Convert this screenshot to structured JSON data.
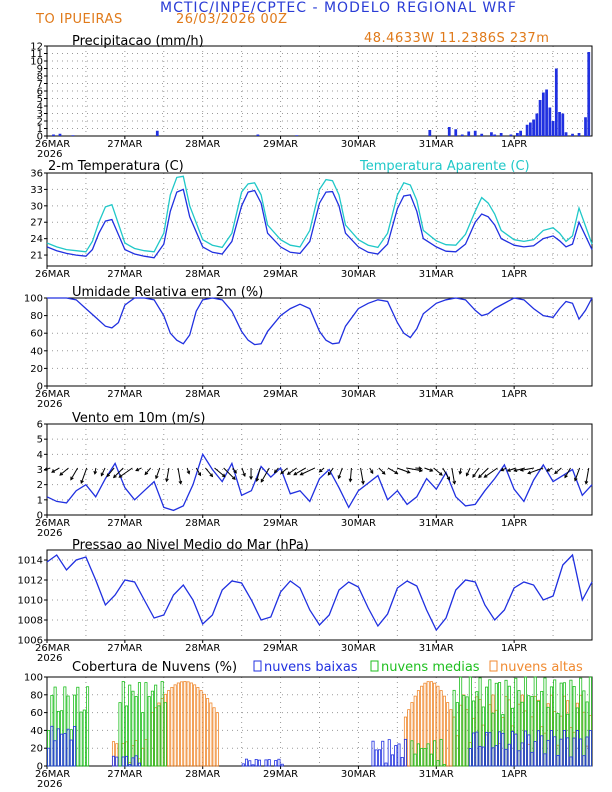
{
  "header": {
    "title": "MCTIC/INPE/CPTEC - MODELO REGIONAL WRF",
    "location": "TO IPUEIRAS",
    "run": "26/03/2026 00Z",
    "coords": "48.4633W 11.2386S 237m"
  },
  "colors": {
    "blue": "#2030e0",
    "cyan": "#20c8c8",
    "green": "#1fbf1f",
    "orange": "#f08a30",
    "title_blue": "#2a3cd6",
    "title_orange": "#e07a1a"
  },
  "chart_data": [
    {
      "type": "bar",
      "title": "Precipitacao (mm/h)",
      "ylim": [
        0,
        12
      ],
      "yticks": [
        "0",
        "1",
        "2",
        "3",
        "4",
        "5",
        "6",
        "7",
        "8",
        "9",
        "10",
        "11",
        "12"
      ],
      "xlabels": [
        "26MAR",
        "27MAR",
        "28MAR",
        "29MAR",
        "30MAR",
        "31MAR",
        "1APR"
      ],
      "year_label": "2026",
      "hours": 168,
      "bars": [
        [
          2,
          0.2
        ],
        [
          4,
          0.3
        ],
        [
          8,
          0.1
        ],
        [
          34,
          0.7
        ],
        [
          65,
          0.2
        ],
        [
          77,
          0.1
        ],
        [
          118,
          0.8
        ],
        [
          124,
          1.2
        ],
        [
          126,
          0.9
        ],
        [
          128,
          0.2
        ],
        [
          130,
          0.6
        ],
        [
          132,
          0.7
        ],
        [
          134,
          0.3
        ],
        [
          137,
          0.5
        ],
        [
          138,
          0.2
        ],
        [
          140,
          0.4
        ],
        [
          143,
          0.2
        ],
        [
          145,
          0.4
        ],
        [
          146,
          0.7
        ],
        [
          148,
          1.5
        ],
        [
          149,
          1.8
        ],
        [
          150,
          2.2
        ],
        [
          151,
          3.0
        ],
        [
          152,
          4.8
        ],
        [
          153,
          5.8
        ],
        [
          154,
          6.2
        ],
        [
          155,
          3.8
        ],
        [
          156,
          2.0
        ],
        [
          157,
          9.0
        ],
        [
          158,
          3.2
        ],
        [
          159,
          3.0
        ],
        [
          160,
          0.5
        ],
        [
          162,
          0.3
        ],
        [
          164,
          0.4
        ],
        [
          166,
          2.5
        ],
        [
          167,
          11.2
        ]
      ]
    },
    {
      "type": "line",
      "title": "2-m Temperatura (C)",
      "legend": "Temperatura Aparente (C)",
      "ylim": [
        19,
        36
      ],
      "yticks": [
        "21",
        "24",
        "27",
        "30",
        "33",
        "36"
      ],
      "ytick_values": [
        21,
        24,
        27,
        30,
        33,
        36
      ],
      "xlabels": [
        "26MAR",
        "27MAR",
        "28MAR",
        "29MAR",
        "30MAR",
        "31MAR",
        "1APR"
      ],
      "series": [
        {
          "name": "Temperatura 2m",
          "x": [
            0,
            3,
            6,
            9,
            12,
            14,
            16,
            18,
            20,
            24,
            27,
            30,
            33,
            36,
            38,
            40,
            42,
            44,
            48,
            51,
            54,
            57,
            60,
            62,
            64,
            66,
            68,
            72,
            75,
            78,
            81,
            84,
            86,
            88,
            90,
            92,
            96,
            99,
            102,
            105,
            108,
            110,
            112,
            114,
            116,
            120,
            123,
            126,
            129,
            132,
            134,
            136,
            138,
            140,
            144,
            147,
            150,
            153,
            156,
            158,
            160,
            162,
            164,
            168
          ],
          "y": [
            22.5,
            21.8,
            21.3,
            21.0,
            20.8,
            22.0,
            25.0,
            27.2,
            27.5,
            22.0,
            21.2,
            20.8,
            20.5,
            23.0,
            29.0,
            32.5,
            33.0,
            28.0,
            22.5,
            21.5,
            21.2,
            23.5,
            30.0,
            32.5,
            32.8,
            30.5,
            25.0,
            22.5,
            21.5,
            21.3,
            23.5,
            30.5,
            32.5,
            32.6,
            30.0,
            25.0,
            22.5,
            21.5,
            21.2,
            23.0,
            29.5,
            31.8,
            32.0,
            29.0,
            24.0,
            22.5,
            21.7,
            21.6,
            23.0,
            27.0,
            28.5,
            28.0,
            26.5,
            24.0,
            22.8,
            22.5,
            22.7,
            24.0,
            24.5,
            23.6,
            22.5,
            23.0,
            27.0,
            22.0
          ]
        },
        {
          "name": "Temperatura Aparente",
          "x": [
            0,
            3,
            6,
            9,
            12,
            14,
            16,
            18,
            20,
            24,
            27,
            30,
            33,
            36,
            38,
            40,
            42,
            44,
            48,
            51,
            54,
            57,
            60,
            62,
            64,
            66,
            68,
            72,
            75,
            78,
            81,
            84,
            86,
            88,
            90,
            92,
            96,
            99,
            102,
            105,
            108,
            110,
            112,
            114,
            116,
            120,
            123,
            126,
            129,
            132,
            134,
            136,
            138,
            140,
            144,
            147,
            150,
            153,
            156,
            158,
            160,
            162,
            164,
            168
          ],
          "y": [
            23.2,
            22.5,
            22.0,
            21.8,
            21.6,
            23.5,
            27.0,
            29.8,
            30.2,
            23.2,
            22.2,
            21.8,
            21.6,
            25.0,
            32.0,
            35.2,
            35.4,
            30.0,
            23.8,
            22.8,
            22.4,
            25.0,
            32.5,
            34.0,
            34.2,
            32.0,
            26.5,
            23.8,
            22.8,
            22.5,
            25.5,
            33.0,
            34.8,
            34.6,
            32.0,
            26.5,
            23.8,
            22.8,
            22.4,
            25.0,
            32.0,
            34.2,
            33.8,
            31.0,
            25.5,
            23.6,
            22.9,
            22.8,
            24.8,
            29.0,
            31.5,
            30.5,
            28.5,
            25.5,
            23.8,
            23.5,
            23.8,
            25.5,
            26.0,
            25.0,
            23.5,
            24.5,
            29.6,
            23.0
          ]
        }
      ]
    },
    {
      "type": "line",
      "title": "Umidade Relativa em 2m (%)",
      "ylim": [
        0,
        100
      ],
      "yticks": [
        "0",
        "20",
        "40",
        "60",
        "80",
        "100"
      ],
      "ytick_values": [
        0,
        20,
        40,
        60,
        80,
        100
      ],
      "xlabels": [
        "26MAR",
        "27MAR",
        "28MAR",
        "29MAR",
        "30MAR",
        "31MAR",
        "1APR"
      ],
      "year_label": "2026",
      "series": [
        {
          "name": "Umidade Relativa",
          "x": [
            0,
            3,
            6,
            9,
            12,
            15,
            18,
            20,
            22,
            24,
            27,
            30,
            33,
            36,
            38,
            40,
            42,
            44,
            46,
            48,
            51,
            54,
            57,
            60,
            62,
            64,
            66,
            68,
            72,
            75,
            78,
            81,
            84,
            86,
            88,
            90,
            92,
            96,
            99,
            102,
            105,
            108,
            110,
            112,
            114,
            116,
            120,
            123,
            126,
            129,
            132,
            134,
            136,
            138,
            140,
            144,
            147,
            150,
            153,
            156,
            158,
            160,
            162,
            164,
            166,
            168
          ],
          "y": [
            100,
            100,
            100,
            98,
            88,
            78,
            68,
            66,
            72,
            92,
            100,
            100,
            98,
            80,
            60,
            52,
            48,
            58,
            85,
            98,
            100,
            98,
            85,
            62,
            52,
            47,
            48,
            62,
            80,
            88,
            93,
            88,
            62,
            52,
            48,
            49,
            68,
            88,
            94,
            98,
            96,
            72,
            60,
            55,
            65,
            82,
            94,
            98,
            100,
            98,
            86,
            80,
            82,
            88,
            92,
            100,
            98,
            88,
            80,
            78,
            88,
            96,
            94,
            76,
            86,
            100
          ]
        }
      ]
    },
    {
      "type": "line",
      "title": "Vento em 10m (m/s)",
      "ylim": [
        0,
        6
      ],
      "yticks": [
        "0",
        "1",
        "2",
        "3",
        "4",
        "5",
        "6"
      ],
      "ytick_values": [
        0,
        1,
        2,
        3,
        4,
        5,
        6
      ],
      "xlabels": [
        "26MAR",
        "27MAR",
        "28MAR",
        "29MAR",
        "30MAR",
        "31MAR",
        "1APR"
      ],
      "year_label": "2026",
      "arrow_baseline": 3.1,
      "series": [
        {
          "name": "Velocidade do vento",
          "x": [
            0,
            3,
            6,
            9,
            12,
            15,
            18,
            21,
            24,
            27,
            30,
            33,
            36,
            39,
            42,
            45,
            48,
            51,
            54,
            57,
            60,
            63,
            66,
            69,
            72,
            75,
            78,
            81,
            84,
            87,
            90,
            93,
            96,
            99,
            102,
            105,
            108,
            111,
            114,
            117,
            120,
            123,
            126,
            129,
            132,
            135,
            138,
            141,
            144,
            147,
            150,
            153,
            156,
            159,
            162,
            165,
            168
          ],
          "y": [
            1.2,
            0.9,
            0.8,
            1.6,
            2.0,
            1.2,
            2.4,
            3.4,
            1.8,
            1.0,
            1.6,
            2.2,
            0.5,
            0.3,
            0.6,
            2.0,
            4.0,
            3.0,
            2.2,
            3.4,
            1.3,
            1.6,
            3.2,
            2.5,
            3.1,
            1.4,
            1.6,
            0.9,
            2.4,
            3.0,
            1.8,
            0.5,
            1.6,
            2.1,
            2.6,
            1.0,
            1.6,
            0.7,
            1.2,
            2.4,
            1.7,
            2.8,
            1.2,
            0.6,
            0.7,
            1.6,
            2.4,
            3.3,
            1.7,
            0.9,
            2.3,
            3.3,
            2.2,
            2.6,
            3.0,
            1.3,
            2.0
          ]
        }
      ],
      "arrow_dirs_deg": [
        200,
        210,
        220,
        240,
        250,
        260,
        245,
        230,
        225,
        215,
        205,
        230,
        250,
        260,
        280,
        290,
        300,
        310,
        320,
        315,
        305,
        290,
        270,
        255,
        240,
        230,
        220,
        215,
        210,
        205,
        220,
        235,
        250,
        265,
        280,
        300,
        315,
        330,
        340,
        350,
        355,
        340,
        320,
        300,
        280,
        260,
        245,
        235,
        225,
        215,
        205,
        200,
        195,
        190,
        200,
        210,
        220,
        240,
        250,
        260
      ]
    },
    {
      "type": "line",
      "title": "Pressao ao Nivel Medio do Mar (hPa)",
      "ylim": [
        1006,
        1015
      ],
      "yticks": [
        "1006",
        "1008",
        "1010",
        "1012",
        "1014"
      ],
      "ytick_values": [
        1006,
        1008,
        1010,
        1012,
        1014
      ],
      "xlabels": [
        "26MAR",
        "27MAR",
        "28MAR",
        "29MAR",
        "30MAR",
        "31MAR",
        "1APR"
      ],
      "year_label": "2026",
      "series": [
        {
          "name": "Pressao",
          "x": [
            0,
            3,
            6,
            9,
            12,
            15,
            18,
            21,
            24,
            27,
            30,
            33,
            36,
            39,
            42,
            45,
            48,
            51,
            54,
            57,
            60,
            63,
            66,
            69,
            72,
            75,
            78,
            81,
            84,
            87,
            90,
            93,
            96,
            99,
            102,
            105,
            108,
            111,
            114,
            117,
            120,
            123,
            126,
            129,
            132,
            135,
            138,
            141,
            144,
            147,
            150,
            153,
            156,
            159,
            162,
            165,
            168
          ],
          "y": [
            1013.8,
            1014.5,
            1013.0,
            1014.0,
            1014.3,
            1012.0,
            1009.5,
            1010.5,
            1012.0,
            1011.8,
            1010.0,
            1008.2,
            1008.5,
            1010.5,
            1011.5,
            1010.0,
            1007.6,
            1008.5,
            1011.0,
            1011.9,
            1011.7,
            1010.0,
            1008.0,
            1008.3,
            1010.8,
            1011.9,
            1011.2,
            1009.0,
            1007.5,
            1008.5,
            1011.0,
            1011.8,
            1011.3,
            1009.2,
            1007.4,
            1008.6,
            1011.2,
            1011.9,
            1011.4,
            1009.0,
            1007.0,
            1008.2,
            1011.0,
            1012.0,
            1011.8,
            1009.5,
            1008.0,
            1009.0,
            1011.2,
            1011.8,
            1011.5,
            1010.0,
            1010.4,
            1013.5,
            1014.5,
            1010.0,
            1011.8
          ]
        }
      ]
    },
    {
      "type": "bar",
      "title": "Cobertura de Nuvens (%)",
      "ylim": [
        0,
        100
      ],
      "yticks": [
        "0",
        "20",
        "40",
        "60",
        "80",
        "100"
      ],
      "ytick_values": [
        0,
        20,
        40,
        60,
        80,
        100
      ],
      "xlabels": [
        "26MAR",
        "27MAR",
        "28MAR",
        "29MAR",
        "30MAR",
        "31MAR",
        "1APR"
      ],
      "year_label": "2026",
      "legend": [
        "nuvens baixas",
        "nuvens medias",
        "nuvens altas"
      ]
    }
  ]
}
